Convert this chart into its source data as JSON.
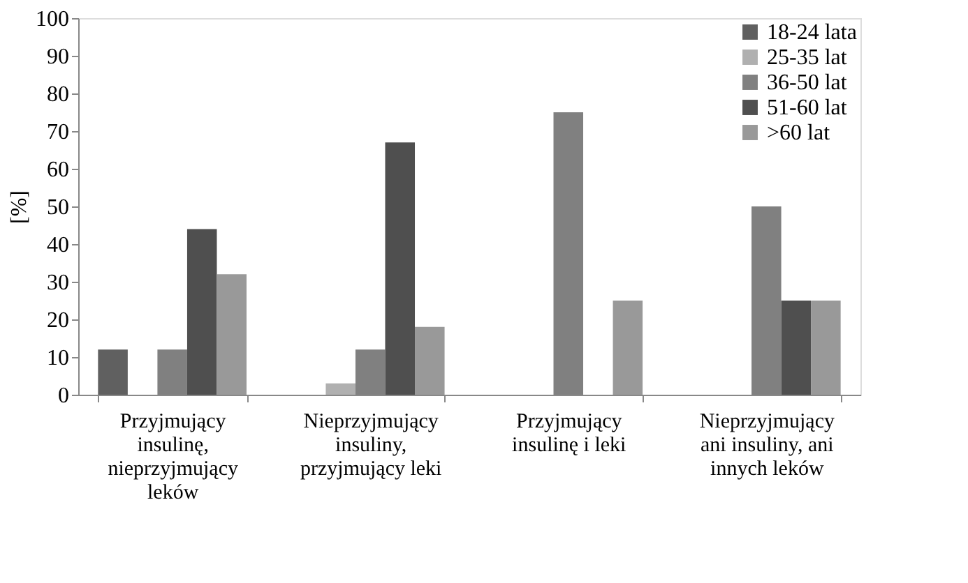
{
  "chart_data": {
    "type": "bar",
    "ylabel": "[%]",
    "categories": [
      "Przyjmujący insulinę, nieprzyjmujący leków",
      "Nieprzyjmujący insuliny, przyjmujący leki",
      "Przyjmujący insulinę i leki",
      "Nieprzyjmujący ani insuliny, ani innych leków"
    ],
    "series": [
      {
        "name": "18-24 lata",
        "color": "#606060",
        "values": [
          12,
          0,
          0,
          0
        ]
      },
      {
        "name": "25-35 lat",
        "color": "#b0b0b0",
        "values": [
          0,
          3,
          0,
          0
        ]
      },
      {
        "name": "36-50 lat",
        "color": "#808080",
        "values": [
          12,
          12,
          75,
          50
        ]
      },
      {
        "name": "51-60 lat",
        "color": "#4f4f4f",
        "values": [
          44,
          67,
          0,
          25
        ]
      },
      {
        "name": ">60 lat",
        "color": "#999999",
        "values": [
          32,
          18,
          25,
          25
        ]
      }
    ],
    "ylim": [
      0,
      100
    ],
    "yticks": [
      0,
      10,
      20,
      30,
      40,
      50,
      60,
      70,
      80,
      90,
      100
    ],
    "grid": false,
    "legend": "top right"
  }
}
